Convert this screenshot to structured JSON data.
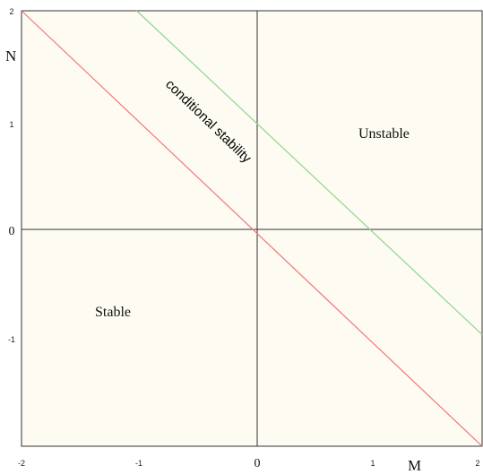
{
  "chart_data": {
    "type": "line",
    "xlabel": "M",
    "ylabel": "N",
    "xlim": [
      -2,
      2
    ],
    "ylim": [
      -1.9,
      2
    ],
    "x_ticks": [
      "-2",
      "-1",
      "0",
      "1",
      "2"
    ],
    "y_ticks": [
      "2",
      "1",
      "0",
      "-1"
    ],
    "grid": false,
    "series": [
      {
        "color": "#f07878",
        "x": [
          -2,
          2
        ],
        "y": [
          2,
          -1.9
        ]
      },
      {
        "color": "#8fd68f",
        "x": [
          -1,
          2
        ],
        "y": [
          2,
          -0.9
        ]
      }
    ],
    "annotations": {
      "conditional": "conditional stability",
      "unstable": "Unstable",
      "stable": "Stable"
    }
  }
}
